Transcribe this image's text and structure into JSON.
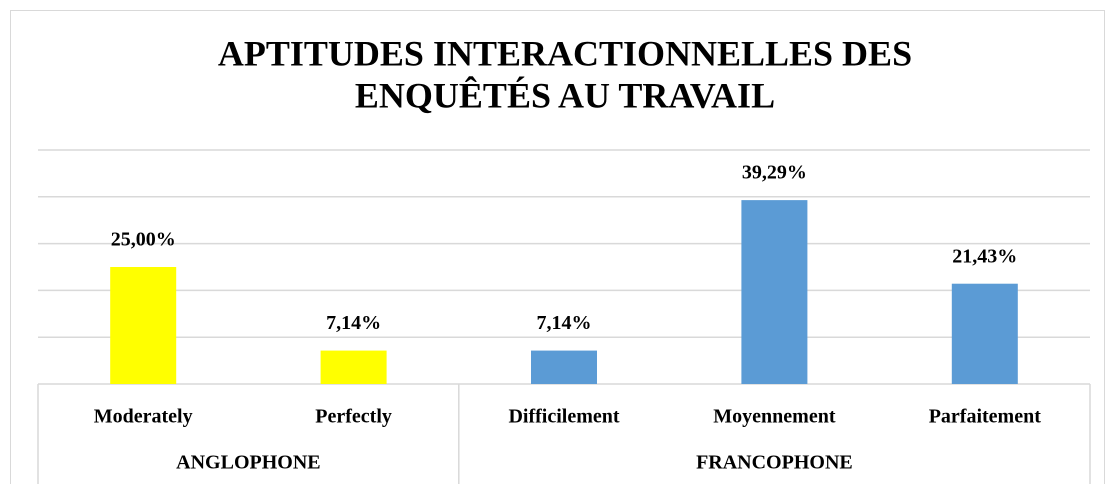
{
  "chart_data": {
    "type": "bar",
    "title": [
      "APTITUDES INTERACTIONNELLES DES",
      "ENQUÊTÉS AU TRAVAIL"
    ],
    "groups": [
      {
        "name": "ANGLOPHONE",
        "color": "#ffff00",
        "categories": [
          "Moderately",
          "Perfectly"
        ],
        "values": [
          25,
          7.14
        ],
        "value_labels": [
          "25,00%",
          "7,14%"
        ]
      },
      {
        "name": "FRANCOPHONE",
        "color": "#5b9bd5",
        "categories": [
          "Difficilement",
          "Moyennement",
          "Parfaitement"
        ],
        "values": [
          7.14,
          39.29,
          21.43
        ],
        "value_labels": [
          "7,14%",
          "39,29%",
          "21,43%"
        ]
      }
    ],
    "ylim": [
      0,
      50
    ],
    "yticks": [
      0,
      10,
      20,
      30,
      40,
      50
    ],
    "grid": true
  }
}
